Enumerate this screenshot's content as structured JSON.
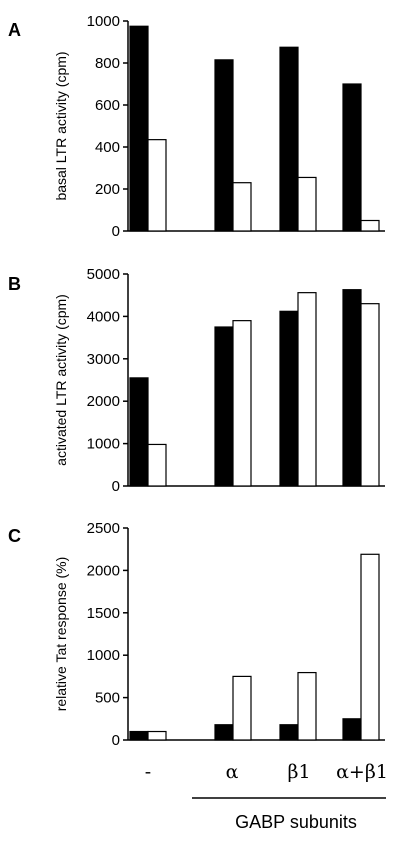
{
  "chart_data": [
    {
      "panel": "A",
      "type": "bar",
      "ylabel": "basal LTR activity (cpm)",
      "ylim": [
        0,
        1000
      ],
      "yticks": [
        0,
        200,
        400,
        600,
        800,
        1000
      ],
      "categories": [
        "-",
        "α",
        "β1",
        "α+β1"
      ],
      "series": [
        {
          "values": [
            975,
            815,
            875,
            700
          ],
          "color": "#000000"
        },
        {
          "values": [
            435,
            230,
            255,
            50
          ],
          "color": "#ffffff"
        }
      ]
    },
    {
      "panel": "B",
      "type": "bar",
      "ylabel": "activated LTR activity (cpm)",
      "ylim": [
        0,
        5000
      ],
      "yticks": [
        0,
        1000,
        2000,
        3000,
        4000,
        5000
      ],
      "categories": [
        "-",
        "α",
        "β1",
        "α+β1"
      ],
      "series": [
        {
          "values": [
            2550,
            3750,
            4120,
            4630
          ],
          "color": "#000000"
        },
        {
          "values": [
            980,
            3900,
            4560,
            4300
          ],
          "color": "#ffffff"
        }
      ]
    },
    {
      "panel": "C",
      "type": "bar",
      "ylabel": "relative Tat response (%)",
      "ylim": [
        0,
        2500
      ],
      "yticks": [
        0,
        500,
        1000,
        1500,
        2000,
        2500
      ],
      "categories": [
        "-",
        "α",
        "β1",
        "α+β1"
      ],
      "series": [
        {
          "values": [
            100,
            180,
            180,
            250
          ],
          "color": "#000000"
        },
        {
          "values": [
            100,
            750,
            795,
            2190
          ],
          "color": "#ffffff"
        }
      ]
    }
  ],
  "xaxis": {
    "categories": [
      "-",
      "α",
      "β1",
      "α+β1"
    ],
    "group_label": "GABP subunits"
  }
}
